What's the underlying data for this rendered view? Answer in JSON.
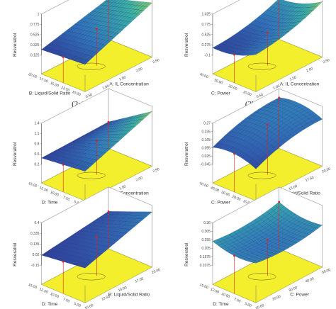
{
  "chart_data": [
    {
      "type": "surface",
      "panel": "2a",
      "caption": "(2a)",
      "zlabel": "Resveratrol",
      "z_ticks": [
        "0.125",
        "0.325",
        "0.525",
        "0.775",
        "1"
      ],
      "x_label": "A: IL Concentration",
      "x_ticks": [
        "0.50",
        "1.00",
        "1.50",
        "2.00",
        "2.50"
      ],
      "y_label": "B: Liquid/Solid Ratio",
      "y_ticks": [
        "10.00",
        "12.50",
        "15.00",
        "17.50",
        "20.00"
      ],
      "shape": "saddle",
      "corner_values": [
        0.13,
        1.0,
        0.53,
        0.13
      ],
      "palette": [
        "#2b2c8e",
        "#2f76bd",
        "#36b3a6",
        "#b7df3c"
      ]
    },
    {
      "type": "surface",
      "panel": "2b",
      "caption": "(2b)",
      "zlabel": "Resveratrol",
      "z_ticks": [
        "-0.1",
        "0.275",
        "0.525",
        "0.775",
        "1.025"
      ],
      "x_label": "A: IL Concentration",
      "x_ticks": [
        "0.50",
        "1.00",
        "1.50",
        "2.00",
        "2.50"
      ],
      "y_label": "C: Power",
      "y_ticks": [
        "10.00",
        "20.00",
        "30.00",
        "40.00"
      ],
      "shape": "bowl",
      "corner_values": [
        0.35,
        0.85,
        0.45,
        0.05
      ],
      "palette": [
        "#2b2c8e",
        "#2f76bd",
        "#36b3a6",
        "#b7df3c"
      ]
    },
    {
      "type": "surface",
      "panel": "2c",
      "caption": "",
      "zlabel": "Resveratrol",
      "z_ticks": [
        "0.2",
        "0.5",
        "0.8",
        "1.1",
        "1.4"
      ],
      "x_label": "A: IL Concentration",
      "x_ticks": [
        "0.50",
        "1.00",
        "1.50",
        "2.00",
        "2.50"
      ],
      "y_label": "D: Time",
      "y_ticks": [
        "5.00",
        "7.50",
        "10.00",
        "12.50",
        "15.00"
      ],
      "shape": "saddle",
      "corner_values": [
        0.4,
        1.35,
        0.3,
        0.35
      ],
      "palette": [
        "#2b2c8e",
        "#2f76bd",
        "#36b3a6",
        "#b7df3c"
      ]
    },
    {
      "type": "surface",
      "panel": "2d",
      "caption": "",
      "zlabel": "Resveratrol",
      "z_ticks": [
        "-0.045",
        "0.025",
        "0.095",
        "0.165",
        "0.235",
        "0.27"
      ],
      "x_label": "B: Liquid/Solid Ratio",
      "x_ticks": [
        "10.00",
        "12.50",
        "15.00",
        "17.50",
        "20.00"
      ],
      "y_label": "C: Power",
      "y_ticks": [
        "10.00",
        "20.00",
        "30.00",
        "40.00",
        "50.00"
      ],
      "shape": "ridge",
      "corner_values": [
        0.0,
        0.2,
        0.25,
        0.05
      ],
      "palette": [
        "#2b2c8e",
        "#2f5fb0",
        "#2f8ec0"
      ]
    },
    {
      "type": "surface",
      "panel": "2e",
      "caption": "",
      "zlabel": "Resveratrol",
      "z_ticks": [
        "-0.15",
        "0.02",
        "0.135",
        "0.335",
        "0.4"
      ],
      "x_label": "B: Liquid/Solid Ratio",
      "x_ticks": [
        "10.00",
        "12.50",
        "15.00",
        "17.50",
        "20.00"
      ],
      "y_label": "D: Time",
      "y_ticks": [
        "5.00",
        "7.50",
        "10.00",
        "12.50",
        "15.00"
      ],
      "shape": "tilted",
      "corner_values": [
        0.0,
        0.38,
        0.05,
        -0.1
      ],
      "palette": [
        "#2b2c8e",
        "#2f5fb0",
        "#2f8ec0"
      ]
    },
    {
      "type": "surface",
      "panel": "2f",
      "caption": "",
      "zlabel": "Resveratrol",
      "z_ticks": [
        "0.1075",
        "0.1575",
        "0.205",
        "0.255",
        "0.305",
        "0.36"
      ],
      "x_label": "C: Power",
      "x_ticks": [
        "10.00",
        "20.00",
        "30.00",
        "40.00",
        "50.00"
      ],
      "y_label": "D: Time",
      "y_ticks": [
        "5.00",
        "7.50",
        "10.00",
        "12.50",
        "15.00"
      ],
      "shape": "bowl",
      "corner_values": [
        0.28,
        0.3,
        0.34,
        0.31
      ],
      "palette": [
        "#2b2c8e",
        "#2f76bd",
        "#36b3a6",
        "#8fd24a"
      ]
    }
  ],
  "colors": {
    "floor": "#f3ef2c",
    "design_point": "#e0201f",
    "surface_edge": "#1c1c60"
  }
}
